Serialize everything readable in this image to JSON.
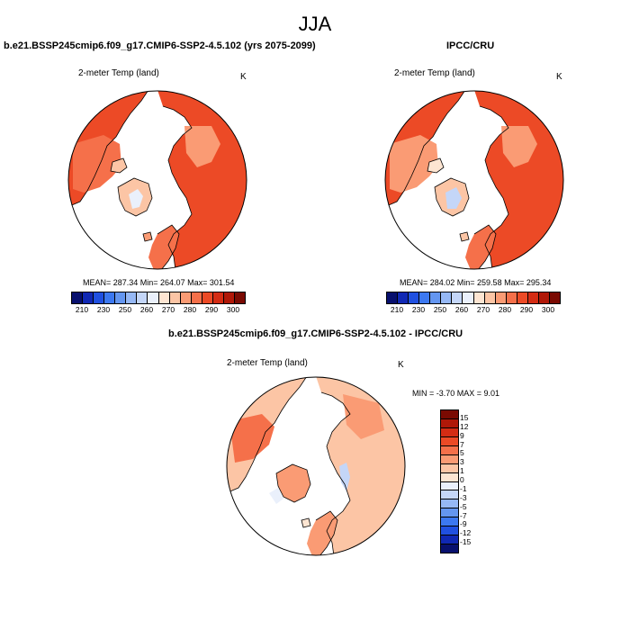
{
  "figure": {
    "main_title": "JJA",
    "left_panel": {
      "case_title": "b.e21.BSSP245cmip6.f09_g17.CMIP6-SSP2-4.5.102 (yrs 2075-2099)",
      "variable": "2-meter Temp (land)",
      "units": "K",
      "stats": "MEAN= 287.34  Min= 264.07  Max= 301.54"
    },
    "right_panel": {
      "case_title": "IPCC/CRU",
      "variable": "2-meter Temp (land)",
      "units": "K",
      "stats": "MEAN= 284.02  Min= 259.58  Max= 295.34"
    },
    "diff_panel": {
      "case_title": "b.e21.BSSP245cmip6.f09_g17.CMIP6-SSP2-4.5.102 - IPCC/CRU",
      "variable": "2-meter Temp (land)",
      "units": "K",
      "stats": "MIN =  -3.70 MAX =   9.01"
    }
  },
  "colorbar_abs": {
    "tick_labels": [
      "210",
      "230",
      "250",
      "260",
      "270",
      "280",
      "290",
      "300"
    ],
    "colors": [
      "#08106e",
      "#1028b4",
      "#2050e0",
      "#3c78f0",
      "#6496f0",
      "#96b8f5",
      "#c4d6f8",
      "#eaf0fb",
      "#fde5d2",
      "#fcc5a5",
      "#fa9b74",
      "#f5704a",
      "#ec4a26",
      "#d42c14",
      "#b01808",
      "#7a0a02"
    ]
  },
  "colorbar_diff": {
    "tick_labels": [
      "15",
      "12",
      "9",
      "7",
      "5",
      "3",
      "1",
      "0",
      "-1",
      "-3",
      "-5",
      "-7",
      "-9",
      "-12",
      "-15"
    ],
    "colors": [
      "#7a0a02",
      "#b01808",
      "#d42c14",
      "#ec4a26",
      "#f5704a",
      "#fa9b74",
      "#fcc5a5",
      "#fde5d2",
      "#eaf0fb",
      "#c4d6f8",
      "#96b8f5",
      "#6496f0",
      "#3c78f0",
      "#2050e0",
      "#1028b4",
      "#08106e"
    ]
  }
}
